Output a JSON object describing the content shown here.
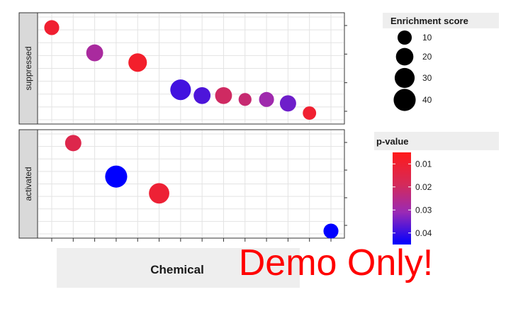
{
  "chart_data": {
    "type": "scatter",
    "x_label": "Chemical",
    "x_categories": 14,
    "panels": [
      {
        "name": "suppressed",
        "ylim": [
          0,
          5
        ],
        "points": [
          {
            "x": 1,
            "y": 4.6,
            "size": 12,
            "p": 0.01
          },
          {
            "x": 3,
            "y": 3.3,
            "size": 18,
            "p": 0.028
          },
          {
            "x": 5,
            "y": 2.8,
            "size": 24,
            "p": 0.009
          },
          {
            "x": 7,
            "y": 1.4,
            "size": 33,
            "p": 0.039
          },
          {
            "x": 8,
            "y": 1.1,
            "size": 18,
            "p": 0.038
          },
          {
            "x": 9,
            "y": 1.1,
            "size": 18,
            "p": 0.02
          },
          {
            "x": 10,
            "y": 0.9,
            "size": 7,
            "p": 0.022
          },
          {
            "x": 11,
            "y": 0.9,
            "size": 12,
            "p": 0.03
          },
          {
            "x": 12,
            "y": 0.7,
            "size": 16,
            "p": 0.035
          },
          {
            "x": 13,
            "y": 0.2,
            "size": 8,
            "p": 0.01
          }
        ]
      },
      {
        "name": "activated",
        "ylim": [
          0,
          4.5
        ],
        "points": [
          {
            "x": 2,
            "y": 4.2,
            "size": 16,
            "p": 0.016
          },
          {
            "x": 4,
            "y": 2.6,
            "size": 40,
            "p": 0.046
          },
          {
            "x": 6,
            "y": 1.8,
            "size": 32,
            "p": 0.011
          },
          {
            "x": 14,
            "y": 0.0,
            "size": 12,
            "p": 0.048
          }
        ]
      }
    ],
    "size_legend": {
      "title": "Enrichment score",
      "breaks": [
        10,
        20,
        30,
        40
      ],
      "labels": [
        "10",
        "20",
        "30",
        "40"
      ]
    },
    "color_legend": {
      "title": "p-value",
      "low": 0.005,
      "high": 0.045,
      "breaks": [
        0.01,
        0.02,
        0.03,
        0.04
      ],
      "labels": [
        "0.01",
        "0.02",
        "0.03",
        "0.04"
      ],
      "low_color": "#ff1a1a",
      "high_color": "#0000ff"
    },
    "watermark": "Demo Only!"
  }
}
